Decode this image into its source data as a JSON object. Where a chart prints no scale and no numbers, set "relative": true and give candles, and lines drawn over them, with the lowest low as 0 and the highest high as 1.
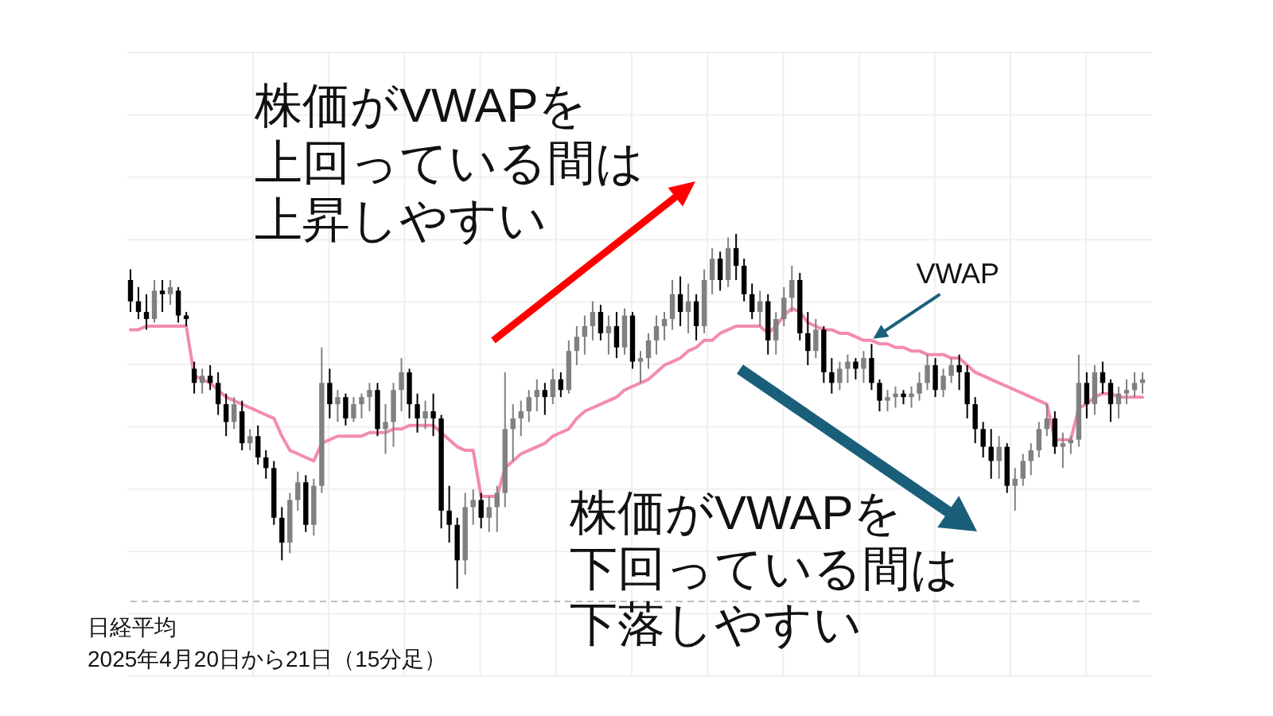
{
  "chart_data": {
    "type": "candlestick",
    "relative": true,
    "grid": true,
    "categories": [
      null,
      null,
      null,
      null,
      null,
      null,
      null,
      null,
      null,
      null,
      null,
      null,
      null,
      null,
      null,
      null,
      null,
      null,
      null,
      null,
      null,
      null,
      null,
      null,
      null,
      null,
      null,
      null,
      null,
      null,
      null,
      null,
      null,
      null,
      null,
      null,
      null,
      null,
      null,
      null,
      null,
      null,
      null,
      null,
      null,
      null,
      null,
      null,
      null,
      null,
      null,
      null,
      null,
      null,
      null,
      null,
      null,
      null,
      null,
      null,
      null,
      null,
      null,
      null,
      null,
      null,
      null,
      null,
      null,
      null,
      null,
      null,
      null,
      null,
      null,
      null,
      null,
      null,
      null,
      null,
      null,
      null,
      null,
      null,
      null,
      null,
      null,
      null,
      null,
      null,
      null,
      null,
      null,
      null,
      null,
      null,
      null,
      null,
      null,
      null,
      null,
      null,
      null,
      null,
      null,
      null,
      null,
      null,
      null,
      null,
      null,
      null,
      null,
      null,
      null,
      null,
      null,
      null,
      null,
      null,
      null,
      null,
      null,
      null,
      null,
      null,
      null,
      null
    ],
    "series": [
      {
        "colors": [
          "#000000",
          "#000000",
          "#000000",
          "#808080",
          "#000000",
          "#808080",
          "#000000",
          "#000000",
          "#000000",
          "#808080",
          "#000000",
          "#000000",
          "#000000",
          "#808080",
          "#000000",
          "#808080",
          "#000000",
          "#000000",
          "#000000",
          "#000000",
          "#808080",
          "#808080",
          "#000000",
          "#808080",
          "#808080",
          "#000000",
          "#808080",
          "#000000",
          "#808080",
          "#808080",
          "#808080",
          "#000000",
          "#808080",
          "#808080",
          "#808080",
          "#000000",
          "#000000",
          "#808080",
          "#000000",
          "#000000",
          "#000000",
          "#000000",
          "#808080",
          "#808080",
          "#000000",
          "#808080",
          "#808080",
          "#808080",
          "#808080",
          "#808080",
          "#808080",
          "#808080",
          "#000000",
          "#808080",
          "#000000",
          "#808080",
          "#808080",
          "#808080",
          "#808080",
          "#000000",
          "#808080",
          "#000000",
          "#808080",
          "#000000",
          "#808080",
          "#808080",
          "#808080",
          "#808080",
          "#808080",
          "#000000",
          "#808080",
          "#000000",
          "#808080",
          "#808080",
          "#000000",
          "#808080",
          "#000000",
          "#000000",
          "#000000",
          "#808080",
          "#000000",
          "#808080",
          "#808080",
          "#808080",
          "#000000",
          "#000000",
          "#808080",
          "#000000",
          "#000000",
          "#808080",
          "#808080",
          "#000000",
          "#808080",
          "#000000",
          "#000000",
          "#808080",
          "#808080",
          "#000000",
          "#808080",
          "#808080",
          "#808080",
          "#000000",
          "#808080",
          "#808080",
          "#000000",
          "#000000",
          "#000000",
          "#000000",
          "#000000",
          "#808080",
          "#000000",
          "#808080",
          "#808080",
          "#808080",
          "#808080",
          "#808080",
          "#000000",
          "#808080",
          "#808080",
          "#808080",
          "#000000",
          "#808080",
          "#000000",
          "#000000",
          "#808080",
          "#808080",
          "#808080",
          "#808080"
        ],
        "ohlc": [
          [
            0.87,
            0.9,
            0.78,
            0.81
          ],
          [
            0.81,
            0.85,
            0.76,
            0.78
          ],
          [
            0.78,
            0.83,
            0.73,
            0.76
          ],
          [
            0.76,
            0.87,
            0.75,
            0.84
          ],
          [
            0.84,
            0.87,
            0.78,
            0.83
          ],
          [
            0.83,
            0.87,
            0.8,
            0.85
          ],
          [
            0.84,
            0.85,
            0.75,
            0.77
          ],
          [
            0.77,
            0.78,
            0.74,
            0.76
          ],
          [
            0.62,
            0.64,
            0.55,
            0.58
          ],
          [
            0.58,
            0.62,
            0.55,
            0.6
          ],
          [
            0.6,
            0.63,
            0.56,
            0.58
          ],
          [
            0.58,
            0.61,
            0.49,
            0.52
          ],
          [
            0.52,
            0.55,
            0.43,
            0.47
          ],
          [
            0.47,
            0.54,
            0.45,
            0.52
          ],
          [
            0.5,
            0.53,
            0.39,
            0.41
          ],
          [
            0.41,
            0.45,
            0.39,
            0.43
          ],
          [
            0.43,
            0.46,
            0.35,
            0.37
          ],
          [
            0.37,
            0.39,
            0.31,
            0.34
          ],
          [
            0.34,
            0.36,
            0.18,
            0.2
          ],
          [
            0.2,
            0.23,
            0.08,
            0.13
          ],
          [
            0.13,
            0.27,
            0.1,
            0.25
          ],
          [
            0.25,
            0.33,
            0.22,
            0.3
          ],
          [
            0.3,
            0.32,
            0.16,
            0.18
          ],
          [
            0.18,
            0.31,
            0.15,
            0.29
          ],
          [
            0.29,
            0.68,
            0.27,
            0.58
          ],
          [
            0.58,
            0.62,
            0.48,
            0.52
          ],
          [
            0.52,
            0.56,
            0.47,
            0.54
          ],
          [
            0.54,
            0.55,
            0.46,
            0.48
          ],
          [
            0.48,
            0.54,
            0.47,
            0.52
          ],
          [
            0.52,
            0.55,
            0.48,
            0.54
          ],
          [
            0.54,
            0.58,
            0.5,
            0.56
          ],
          [
            0.56,
            0.58,
            0.43,
            0.45
          ],
          [
            0.45,
            0.52,
            0.38,
            0.47
          ],
          [
            0.47,
            0.58,
            0.4,
            0.56
          ],
          [
            0.56,
            0.65,
            0.5,
            0.61
          ],
          [
            0.61,
            0.62,
            0.48,
            0.52
          ],
          [
            0.52,
            0.55,
            0.44,
            0.48
          ],
          [
            0.48,
            0.53,
            0.45,
            0.5
          ],
          [
            0.5,
            0.55,
            0.43,
            0.48
          ],
          [
            0.48,
            0.49,
            0.17,
            0.22
          ],
          [
            0.22,
            0.29,
            0.13,
            0.18
          ],
          [
            0.18,
            0.2,
            0.0,
            0.08
          ],
          [
            0.08,
            0.27,
            0.04,
            0.23
          ],
          [
            0.23,
            0.28,
            0.18,
            0.25
          ],
          [
            0.25,
            0.27,
            0.17,
            0.2
          ],
          [
            0.2,
            0.26,
            0.16,
            0.23
          ],
          [
            0.23,
            0.29,
            0.16,
            0.27
          ],
          [
            0.27,
            0.61,
            0.23,
            0.45
          ],
          [
            0.45,
            0.52,
            0.36,
            0.48
          ],
          [
            0.48,
            0.53,
            0.43,
            0.5
          ],
          [
            0.5,
            0.56,
            0.47,
            0.54
          ],
          [
            0.54,
            0.59,
            0.5,
            0.56
          ],
          [
            0.56,
            0.58,
            0.49,
            0.54
          ],
          [
            0.54,
            0.62,
            0.52,
            0.59
          ],
          [
            0.59,
            0.61,
            0.54,
            0.56
          ],
          [
            0.56,
            0.7,
            0.55,
            0.67
          ],
          [
            0.67,
            0.74,
            0.63,
            0.71
          ],
          [
            0.71,
            0.77,
            0.66,
            0.74
          ],
          [
            0.74,
            0.81,
            0.7,
            0.78
          ],
          [
            0.78,
            0.8,
            0.7,
            0.72
          ],
          [
            0.72,
            0.77,
            0.66,
            0.74
          ],
          [
            0.74,
            0.78,
            0.65,
            0.68
          ],
          [
            0.68,
            0.79,
            0.66,
            0.77
          ],
          [
            0.77,
            0.78,
            0.62,
            0.64
          ],
          [
            0.64,
            0.67,
            0.58,
            0.65
          ],
          [
            0.65,
            0.72,
            0.62,
            0.7
          ],
          [
            0.7,
            0.77,
            0.66,
            0.74
          ],
          [
            0.74,
            0.78,
            0.7,
            0.76
          ],
          [
            0.76,
            0.87,
            0.73,
            0.83
          ],
          [
            0.83,
            0.88,
            0.74,
            0.78
          ],
          [
            0.78,
            0.86,
            0.72,
            0.81
          ],
          [
            0.81,
            0.83,
            0.7,
            0.74
          ],
          [
            0.74,
            0.9,
            0.72,
            0.87
          ],
          [
            0.87,
            0.96,
            0.83,
            0.93
          ],
          [
            0.93,
            0.95,
            0.84,
            0.87
          ],
          [
            0.87,
            0.99,
            0.85,
            0.96
          ],
          [
            0.96,
            1.0,
            0.87,
            0.91
          ],
          [
            0.91,
            0.93,
            0.81,
            0.83
          ],
          [
            0.83,
            0.86,
            0.76,
            0.78
          ],
          [
            0.78,
            0.84,
            0.74,
            0.81
          ],
          [
            0.81,
            0.83,
            0.66,
            0.7
          ],
          [
            0.7,
            0.78,
            0.66,
            0.76
          ],
          [
            0.76,
            0.85,
            0.74,
            0.82
          ],
          [
            0.82,
            0.91,
            0.78,
            0.87
          ],
          [
            0.87,
            0.89,
            0.7,
            0.72
          ],
          [
            0.72,
            0.78,
            0.63,
            0.67
          ],
          [
            0.67,
            0.76,
            0.65,
            0.73
          ],
          [
            0.73,
            0.74,
            0.58,
            0.61
          ],
          [
            0.61,
            0.65,
            0.55,
            0.58
          ],
          [
            0.58,
            0.64,
            0.56,
            0.62
          ],
          [
            0.62,
            0.66,
            0.58,
            0.64
          ],
          [
            0.64,
            0.65,
            0.59,
            0.62
          ],
          [
            0.62,
            0.67,
            0.58,
            0.65
          ],
          [
            0.65,
            0.69,
            0.56,
            0.58
          ],
          [
            0.58,
            0.59,
            0.5,
            0.53
          ],
          [
            0.53,
            0.56,
            0.5,
            0.54
          ],
          [
            0.54,
            0.57,
            0.51,
            0.55
          ],
          [
            0.55,
            0.56,
            0.52,
            0.54
          ],
          [
            0.54,
            0.57,
            0.51,
            0.55
          ],
          [
            0.55,
            0.61,
            0.53,
            0.58
          ],
          [
            0.58,
            0.66,
            0.56,
            0.63
          ],
          [
            0.63,
            0.65,
            0.54,
            0.56
          ],
          [
            0.56,
            0.62,
            0.54,
            0.6
          ],
          [
            0.6,
            0.65,
            0.58,
            0.63
          ],
          [
            0.63,
            0.66,
            0.56,
            0.61
          ],
          [
            0.61,
            0.63,
            0.48,
            0.52
          ],
          [
            0.52,
            0.54,
            0.41,
            0.45
          ],
          [
            0.45,
            0.47,
            0.37,
            0.4
          ],
          [
            0.4,
            0.45,
            0.31,
            0.36
          ],
          [
            0.36,
            0.43,
            0.31,
            0.4
          ],
          [
            0.4,
            0.41,
            0.27,
            0.29
          ],
          [
            0.29,
            0.34,
            0.22,
            0.31
          ],
          [
            0.31,
            0.38,
            0.29,
            0.36
          ],
          [
            0.36,
            0.41,
            0.32,
            0.39
          ],
          [
            0.39,
            0.47,
            0.37,
            0.45
          ],
          [
            0.45,
            0.52,
            0.43,
            0.48
          ],
          [
            0.48,
            0.5,
            0.38,
            0.4
          ],
          [
            0.4,
            0.44,
            0.34,
            0.41
          ],
          [
            0.41,
            0.43,
            0.38,
            0.42
          ],
          [
            0.42,
            0.66,
            0.4,
            0.58
          ],
          [
            0.58,
            0.61,
            0.48,
            0.52
          ],
          [
            0.52,
            0.63,
            0.49,
            0.61
          ],
          [
            0.61,
            0.64,
            0.55,
            0.58
          ],
          [
            0.58,
            0.59,
            0.47,
            0.52
          ],
          [
            0.52,
            0.57,
            0.48,
            0.55
          ],
          [
            0.55,
            0.59,
            0.52,
            0.56
          ],
          [
            0.56,
            0.61,
            0.54,
            0.58
          ],
          [
            0.58,
            0.61,
            0.55,
            0.59
          ]
        ]
      },
      {
        "type": "line",
        "name": "VWAP",
        "color": "#f38bb0",
        "values": [
          0.73,
          0.73,
          0.74,
          0.74,
          0.74,
          0.74,
          0.74,
          0.74,
          0.6,
          0.59,
          0.58,
          0.56,
          0.54,
          0.53,
          0.52,
          0.51,
          0.5,
          0.49,
          0.48,
          0.43,
          0.39,
          0.38,
          0.37,
          0.36,
          0.41,
          0.42,
          0.43,
          0.43,
          0.43,
          0.43,
          0.44,
          0.44,
          0.44,
          0.45,
          0.45,
          0.46,
          0.46,
          0.46,
          0.46,
          0.44,
          0.42,
          0.4,
          0.39,
          0.39,
          0.26,
          0.26,
          0.26,
          0.34,
          0.36,
          0.38,
          0.39,
          0.4,
          0.41,
          0.43,
          0.44,
          0.45,
          0.48,
          0.5,
          0.51,
          0.52,
          0.53,
          0.54,
          0.56,
          0.57,
          0.58,
          0.59,
          0.61,
          0.63,
          0.64,
          0.65,
          0.67,
          0.68,
          0.7,
          0.7,
          0.72,
          0.73,
          0.74,
          0.74,
          0.74,
          0.74,
          0.72,
          0.74,
          0.77,
          0.79,
          0.78,
          0.75,
          0.74,
          0.73,
          0.73,
          0.72,
          0.72,
          0.71,
          0.7,
          0.7,
          0.69,
          0.69,
          0.68,
          0.68,
          0.67,
          0.67,
          0.66,
          0.66,
          0.66,
          0.65,
          0.65,
          0.63,
          0.61,
          0.6,
          0.59,
          0.58,
          0.57,
          0.56,
          0.55,
          0.54,
          0.53,
          0.52,
          0.42,
          0.42,
          0.42,
          0.51,
          0.52,
          0.54,
          0.55,
          0.55,
          0.54,
          0.54,
          0.54,
          0.54
        ]
      }
    ],
    "annotations": [
      "株価がVWAPを",
      "上回っている間は",
      "上昇しやすい",
      "株価がVWAPを",
      "下回っている間は",
      "下落しやすい",
      "日経平均",
      "2025年4月20日から21日（15分足）"
    ]
  }
}
